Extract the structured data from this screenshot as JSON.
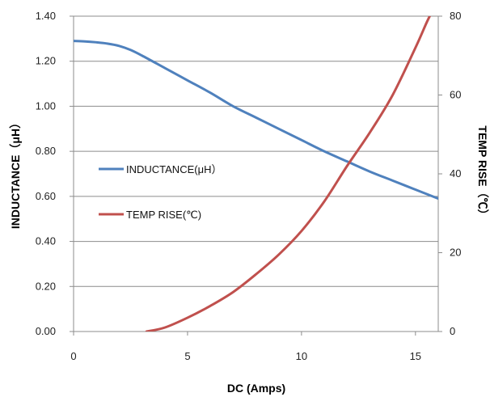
{
  "chart_data": {
    "type": "line",
    "xlabel": "DC (Amps)",
    "ylabel": "INDUCTANCE（μH）",
    "y2label": "TEMP RISE（℃）",
    "xlim": [
      0,
      16
    ],
    "ylim": [
      0,
      1.4
    ],
    "y2lim": [
      0,
      80
    ],
    "x_ticks": [
      "0",
      "5",
      "10",
      "15"
    ],
    "x_tick_values": [
      0,
      5,
      10,
      15
    ],
    "y_ticks": [
      "0.00",
      "0.20",
      "0.40",
      "0.60",
      "0.80",
      "1.00",
      "1.20",
      "1.40"
    ],
    "y_tick_values": [
      0,
      0.2,
      0.4,
      0.6,
      0.8,
      1.0,
      1.2,
      1.4
    ],
    "y2_ticks": [
      "0",
      "20",
      "40",
      "60",
      "80"
    ],
    "y2_tick_values": [
      0,
      20,
      40,
      60,
      80
    ],
    "grid": "horizontal",
    "legend_position": "center-left",
    "series": [
      {
        "name": "INDUCTANCE(μH）",
        "axis": "left",
        "color": "#4F81BD",
        "x": [
          0,
          0.5,
          1,
          1.5,
          2,
          2.5,
          3,
          4,
          5,
          6,
          7,
          8,
          9,
          10,
          11,
          12,
          13,
          14,
          15,
          16
        ],
        "values": [
          1.29,
          1.288,
          1.284,
          1.278,
          1.268,
          1.25,
          1.225,
          1.17,
          1.115,
          1.06,
          1.0,
          0.95,
          0.9,
          0.85,
          0.8,
          0.755,
          0.71,
          0.67,
          0.63,
          0.59
        ]
      },
      {
        "name": "TEMP RISE(℃)",
        "axis": "right",
        "color": "#C0504D",
        "x": [
          3.2,
          4,
          5,
          6,
          7,
          8,
          9,
          10,
          11,
          12,
          13,
          14,
          15,
          15.5,
          15.8
        ],
        "values": [
          0,
          1,
          3.5,
          6.5,
          10,
          14.5,
          19.5,
          25.5,
          33,
          42,
          50.5,
          60,
          72,
          78.5,
          82
        ]
      }
    ]
  }
}
